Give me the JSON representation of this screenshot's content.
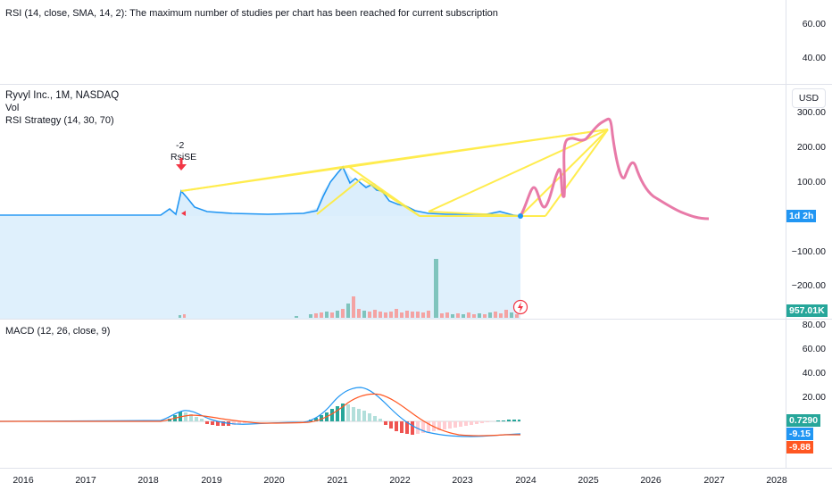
{
  "rsi_pane": {
    "legend": "RSI (14, close, SMA, 14, 2): The maximum number of studies per chart has been reached for current subscription",
    "ticks": [
      "60.00",
      "40.00"
    ]
  },
  "main_pane": {
    "symbol": "Ryvyl Inc., 1M, NASDAQ",
    "vol_label": "Vol",
    "strategy_label": "RSI Strategy (14, 30, 70)",
    "currency": "USD",
    "ticks": [
      "300.00",
      "200.00",
      "100.00",
      "−100.00",
      "−200.00"
    ],
    "signal_count": "-2",
    "signal_label": "RsiSE",
    "price_badge": "1d 2h",
    "volume_badge": "957.01K"
  },
  "macd_pane": {
    "legend": "MACD (12, 26, close, 9)",
    "ticks": [
      "80.00",
      "60.00",
      "40.00",
      "20.00"
    ],
    "badges": [
      "0.7290",
      "-9.15",
      "-9.88"
    ]
  },
  "x_axis": {
    "years": [
      "2016",
      "2017",
      "2018",
      "2019",
      "2020",
      "2021",
      "2022",
      "2023",
      "2024",
      "2025",
      "2026",
      "2027",
      "2028"
    ]
  },
  "colors": {
    "price_line": "#2196f3",
    "price_fill": "#dbeefc",
    "forecast_line": "#e87aa8",
    "pattern_lines": "#ffeb3b",
    "volume_up": "#7fc4bd",
    "volume_down": "#f4a3a3",
    "macd_line": "#2196f3",
    "signal_line": "#ff5722",
    "hist_up_strong": "#26a69a",
    "hist_up_weak": "#b2dfdb",
    "hist_down_strong": "#ef5350",
    "hist_down_weak": "#ffcdd2",
    "signal_arrow": "#f23645"
  }
}
